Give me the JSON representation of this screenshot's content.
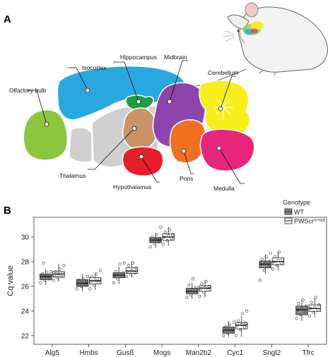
{
  "panels": {
    "a": "A",
    "b": "B"
  },
  "regions": {
    "olfactory_bulb": "Olfactory bulb",
    "isocortex": "Isocortex",
    "hippocampus": "Hippocampus",
    "midbrain": "Midbrain",
    "cerebellum": "Cerebellum",
    "thalamus": "Thalamus",
    "hypothalamus": "Hypothalamus",
    "pons": "Pons",
    "medulla": "Medulla"
  },
  "region_colors": {
    "olfactory_bulb": "#8cc63f",
    "isocortex": "#29a8e0",
    "hippocampus": "#1e9c3f",
    "thalamus": "#c69466",
    "midbrain": "#8e44ad",
    "cerebellum": "#f7ef1a",
    "hypothalamus": "#e5202b",
    "pons": "#f36f21",
    "medulla": "#e8257b",
    "other": "#cfcfcf"
  },
  "chart_data": {
    "type": "box",
    "ylabel": "Cq value",
    "xlabel": "",
    "ylim": [
      21.3,
      31.6
    ],
    "yticks": [
      22,
      24,
      26,
      28,
      30
    ],
    "categories": [
      "Alg5",
      "Hmbs",
      "Gusß",
      "Mogs",
      "Man2b2",
      "Cyc1",
      "Sngl2",
      "Tfrc"
    ],
    "legend": {
      "title": "Genotype",
      "position": "top-right"
    },
    "series": [
      {
        "name": "WT",
        "color": "#8a8a8a",
        "boxes": [
          {
            "min": 26.1,
            "q1": 26.55,
            "median": 26.8,
            "q3": 27.0,
            "max": 27.4
          },
          {
            "min": 25.6,
            "q1": 26.0,
            "median": 26.25,
            "q3": 26.55,
            "max": 27.0
          },
          {
            "min": 26.2,
            "q1": 26.7,
            "median": 26.9,
            "q3": 27.1,
            "max": 27.6
          },
          {
            "min": 29.1,
            "q1": 29.55,
            "median": 29.75,
            "q3": 29.95,
            "max": 30.3
          },
          {
            "min": 25.0,
            "q1": 25.4,
            "median": 25.6,
            "q3": 25.85,
            "max": 26.3
          },
          {
            "min": 21.9,
            "q1": 22.2,
            "median": 22.45,
            "q3": 22.7,
            "max": 23.2
          },
          {
            "min": 27.0,
            "q1": 27.5,
            "median": 27.8,
            "q3": 28.05,
            "max": 28.6
          },
          {
            "min": 23.2,
            "q1": 23.7,
            "median": 24.1,
            "q3": 24.4,
            "max": 24.9
          }
        ],
        "points": [
          [
            26.3,
            26.5,
            26.6,
            26.7,
            26.8,
            26.9,
            27.0,
            27.1,
            27.2,
            27.9
          ],
          [
            25.8,
            26.0,
            26.1,
            26.2,
            26.3,
            26.4,
            26.5,
            26.6,
            26.8
          ],
          [
            26.3,
            26.6,
            26.8,
            26.9,
            27.0,
            27.1,
            27.2,
            27.8,
            27.9
          ],
          [
            29.2,
            29.5,
            29.6,
            29.7,
            29.8,
            29.9,
            30.0,
            30.2,
            30.8
          ],
          [
            25.1,
            25.3,
            25.5,
            25.6,
            25.7,
            25.9,
            26.1,
            26.6
          ],
          [
            22.0,
            22.2,
            22.3,
            22.4,
            22.5,
            22.6,
            22.7,
            22.9,
            23.1
          ],
          [
            26.5,
            27.3,
            27.6,
            27.8,
            27.9,
            28.0,
            28.2,
            28.4,
            28.7
          ],
          [
            23.4,
            23.7,
            23.9,
            24.1,
            24.2,
            24.4,
            24.6,
            24.9
          ]
        ]
      },
      {
        "name": "PWScr",
        "name_sup": "m+/pΔ",
        "color": "#ffffff",
        "boxes": [
          {
            "min": 26.4,
            "q1": 26.75,
            "median": 27.0,
            "q3": 27.2,
            "max": 27.8
          },
          {
            "min": 25.7,
            "q1": 26.2,
            "median": 26.45,
            "q3": 26.7,
            "max": 27.1
          },
          {
            "min": 26.7,
            "q1": 27.05,
            "median": 27.25,
            "q3": 27.5,
            "max": 28.0
          },
          {
            "min": 29.3,
            "q1": 29.75,
            "median": 30.0,
            "q3": 30.25,
            "max": 30.8
          },
          {
            "min": 25.1,
            "q1": 25.6,
            "median": 25.85,
            "q3": 26.05,
            "max": 26.5
          },
          {
            "min": 21.9,
            "q1": 22.55,
            "median": 22.85,
            "q3": 23.05,
            "max": 23.6
          },
          {
            "min": 27.3,
            "q1": 27.75,
            "median": 28.0,
            "q3": 28.3,
            "max": 28.8
          },
          {
            "min": 23.5,
            "q1": 23.95,
            "median": 24.2,
            "q3": 24.5,
            "max": 25.0
          }
        ],
        "points": [
          [
            26.5,
            26.7,
            26.8,
            26.9,
            27.0,
            27.1,
            27.2,
            27.4,
            27.7
          ],
          [
            25.8,
            26.1,
            26.3,
            26.4,
            26.5,
            26.6,
            26.8,
            27.0,
            27.3
          ],
          [
            26.8,
            27.0,
            27.1,
            27.2,
            27.3,
            27.5,
            27.7,
            27.9
          ],
          [
            29.4,
            29.7,
            29.9,
            30.0,
            30.1,
            30.2,
            30.4,
            30.6
          ],
          [
            25.2,
            25.5,
            25.7,
            25.8,
            25.9,
            26.0,
            26.2,
            26.4
          ],
          [
            22.0,
            22.5,
            22.7,
            22.8,
            22.9,
            23.0,
            23.2,
            23.8,
            24.0
          ],
          [
            27.4,
            27.7,
            27.9,
            28.0,
            28.1,
            28.2,
            28.4,
            28.8
          ],
          [
            23.6,
            23.9,
            24.1,
            24.2,
            24.3,
            24.5,
            24.7,
            25.1
          ]
        ]
      }
    ]
  }
}
